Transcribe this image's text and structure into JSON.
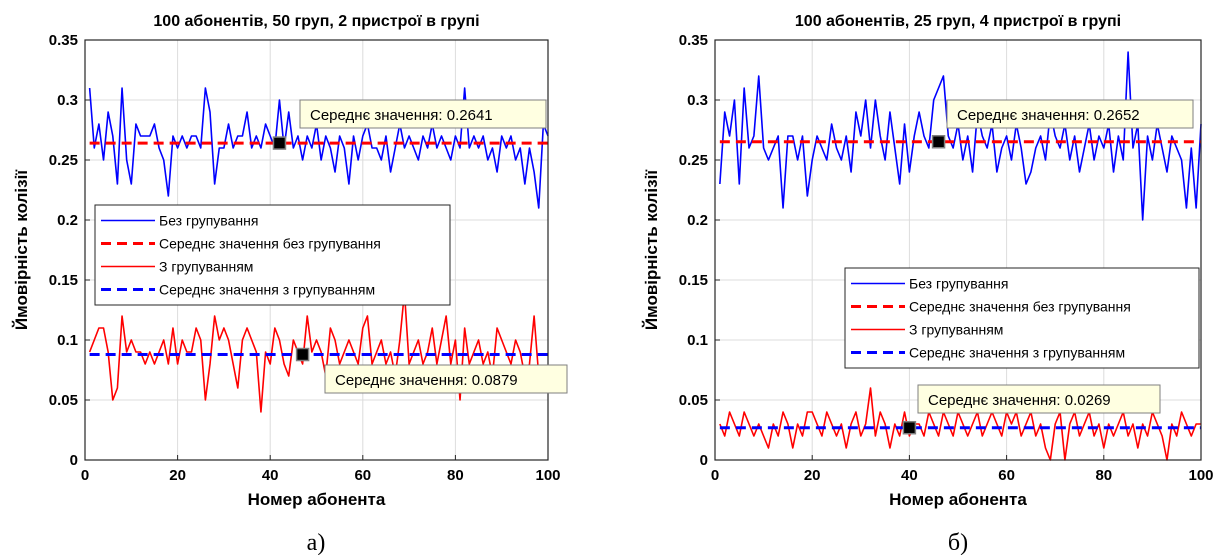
{
  "chart_data": [
    {
      "type": "line",
      "title": "100 абонентів, 50 груп, 2 пристрої в групі",
      "xlabel": "Номер абонента",
      "ylabel": "Ймовірність колізії",
      "caption": "а)",
      "xlim": [
        0,
        100
      ],
      "ylim": [
        0,
        0.35
      ],
      "xticks": [
        "0",
        "20",
        "40",
        "60",
        "80",
        "100"
      ],
      "yticks": [
        "0",
        "0.05",
        "0.1",
        "0.15",
        "0.2",
        "0.25",
        "0.3",
        "0.35"
      ],
      "grid": true,
      "legend_position": "center-left",
      "series": [
        {
          "name": "Без групування",
          "color": "#0000ff",
          "style": "solid",
          "x": [
            1,
            2,
            3,
            4,
            5,
            6,
            7,
            8,
            9,
            10,
            11,
            12,
            13,
            14,
            15,
            16,
            17,
            18,
            19,
            20,
            21,
            22,
            23,
            24,
            25,
            26,
            27,
            28,
            29,
            30,
            31,
            32,
            33,
            34,
            35,
            36,
            37,
            38,
            39,
            40,
            41,
            42,
            43,
            44,
            45,
            46,
            47,
            48,
            49,
            50,
            51,
            52,
            53,
            54,
            55,
            56,
            57,
            58,
            59,
            60,
            61,
            62,
            63,
            64,
            65,
            66,
            67,
            68,
            69,
            70,
            71,
            72,
            73,
            74,
            75,
            76,
            77,
            78,
            79,
            80,
            81,
            82,
            83,
            84,
            85,
            86,
            87,
            88,
            89,
            90,
            91,
            92,
            93,
            94,
            95,
            96,
            97,
            98,
            99,
            100
          ],
          "values": [
            0.31,
            0.26,
            0.28,
            0.25,
            0.29,
            0.27,
            0.23,
            0.31,
            0.25,
            0.23,
            0.28,
            0.27,
            0.27,
            0.27,
            0.28,
            0.26,
            0.25,
            0.22,
            0.27,
            0.26,
            0.27,
            0.26,
            0.27,
            0.27,
            0.26,
            0.31,
            0.29,
            0.23,
            0.26,
            0.26,
            0.28,
            0.26,
            0.27,
            0.27,
            0.29,
            0.26,
            0.27,
            0.26,
            0.28,
            0.27,
            0.26,
            0.3,
            0.26,
            0.29,
            0.26,
            0.27,
            0.25,
            0.27,
            0.26,
            0.28,
            0.25,
            0.27,
            0.26,
            0.24,
            0.27,
            0.26,
            0.23,
            0.27,
            0.25,
            0.27,
            0.28,
            0.26,
            0.26,
            0.25,
            0.27,
            0.24,
            0.26,
            0.28,
            0.26,
            0.27,
            0.26,
            0.25,
            0.27,
            0.26,
            0.28,
            0.26,
            0.27,
            0.26,
            0.25,
            0.27,
            0.26,
            0.31,
            0.26,
            0.27,
            0.26,
            0.27,
            0.25,
            0.26,
            0.24,
            0.27,
            0.26,
            0.27,
            0.25,
            0.26,
            0.23,
            0.26,
            0.24,
            0.21,
            0.28,
            0.27
          ]
        },
        {
          "name": "Середнє значення без групування",
          "color": "#ff0000",
          "style": "dashed",
          "x": [
            1,
            100
          ],
          "values": [
            0.2641,
            0.2641
          ]
        },
        {
          "name": "З групуванням",
          "color": "#ff0000",
          "style": "solid",
          "x": [
            1,
            2,
            3,
            4,
            5,
            6,
            7,
            8,
            9,
            10,
            11,
            12,
            13,
            14,
            15,
            16,
            17,
            18,
            19,
            20,
            21,
            22,
            23,
            24,
            25,
            26,
            27,
            28,
            29,
            30,
            31,
            32,
            33,
            34,
            35,
            36,
            37,
            38,
            39,
            40,
            41,
            42,
            43,
            44,
            45,
            46,
            47,
            48,
            49,
            50,
            51,
            52,
            53,
            54,
            55,
            56,
            57,
            58,
            59,
            60,
            61,
            62,
            63,
            64,
            65,
            66,
            67,
            68,
            69,
            70,
            71,
            72,
            73,
            74,
            75,
            76,
            77,
            78,
            79,
            80,
            81,
            82,
            83,
            84,
            85,
            86,
            87,
            88,
            89,
            90,
            91,
            92,
            93,
            94,
            95,
            96,
            97,
            98,
            99,
            100
          ],
          "values": [
            0.09,
            0.1,
            0.11,
            0.11,
            0.09,
            0.05,
            0.06,
            0.12,
            0.09,
            0.1,
            0.09,
            0.09,
            0.08,
            0.09,
            0.08,
            0.09,
            0.1,
            0.08,
            0.11,
            0.08,
            0.1,
            0.09,
            0.09,
            0.11,
            0.1,
            0.05,
            0.08,
            0.12,
            0.1,
            0.11,
            0.1,
            0.08,
            0.06,
            0.1,
            0.11,
            0.1,
            0.09,
            0.04,
            0.09,
            0.08,
            0.11,
            0.1,
            0.08,
            0.07,
            0.1,
            0.09,
            0.08,
            0.12,
            0.09,
            0.1,
            0.09,
            0.07,
            0.11,
            0.1,
            0.08,
            0.09,
            0.1,
            0.09,
            0.08,
            0.11,
            0.12,
            0.08,
            0.09,
            0.1,
            0.08,
            0.09,
            0.07,
            0.1,
            0.14,
            0.08,
            0.09,
            0.1,
            0.08,
            0.09,
            0.11,
            0.08,
            0.1,
            0.12,
            0.08,
            0.1,
            0.05,
            0.11,
            0.08,
            0.09,
            0.1,
            0.08,
            0.09,
            0.07,
            0.11,
            0.1,
            0.09,
            0.08,
            0.1,
            0.09,
            0.07,
            0.08,
            0.12,
            0.07,
            0.07,
            0.07
          ]
        },
        {
          "name": "Середнє значення з групуванням",
          "color": "#0000ff",
          "style": "dashed",
          "x": [
            1,
            100
          ],
          "values": [
            0.0879,
            0.0879
          ]
        }
      ],
      "annotations": [
        {
          "text": "Середнє значення: 0.2641",
          "x": 42,
          "y": 0.2641
        },
        {
          "text": "Середнє значення: 0.0879",
          "x": 47,
          "y": 0.0879
        }
      ]
    },
    {
      "type": "line",
      "title": "100 абонентів, 25 груп, 4 пристрої в групі",
      "xlabel": "Номер абонента",
      "ylabel": "Ймовірність колізії",
      "caption": "б)",
      "xlim": [
        0,
        100
      ],
      "ylim": [
        0,
        0.35
      ],
      "xticks": [
        "0",
        "20",
        "40",
        "60",
        "80",
        "100"
      ],
      "yticks": [
        "0",
        "0.05",
        "0.1",
        "0.15",
        "0.2",
        "0.25",
        "0.3",
        "0.35"
      ],
      "grid": true,
      "legend_position": "center-right",
      "series": [
        {
          "name": "Без групування",
          "color": "#0000ff",
          "style": "solid",
          "x": [
            1,
            2,
            3,
            4,
            5,
            6,
            7,
            8,
            9,
            10,
            11,
            12,
            13,
            14,
            15,
            16,
            17,
            18,
            19,
            20,
            21,
            22,
            23,
            24,
            25,
            26,
            27,
            28,
            29,
            30,
            31,
            32,
            33,
            34,
            35,
            36,
            37,
            38,
            39,
            40,
            41,
            42,
            43,
            44,
            45,
            46,
            47,
            48,
            49,
            50,
            51,
            52,
            53,
            54,
            55,
            56,
            57,
            58,
            59,
            60,
            61,
            62,
            63,
            64,
            65,
            66,
            67,
            68,
            69,
            70,
            71,
            72,
            73,
            74,
            75,
            76,
            77,
            78,
            79,
            80,
            81,
            82,
            83,
            84,
            85,
            86,
            87,
            88,
            89,
            90,
            91,
            92,
            93,
            94,
            95,
            96,
            97,
            98,
            99,
            100
          ],
          "values": [
            0.23,
            0.29,
            0.27,
            0.3,
            0.23,
            0.31,
            0.26,
            0.27,
            0.32,
            0.26,
            0.25,
            0.26,
            0.27,
            0.21,
            0.27,
            0.27,
            0.25,
            0.27,
            0.22,
            0.25,
            0.27,
            0.26,
            0.25,
            0.28,
            0.26,
            0.25,
            0.27,
            0.24,
            0.29,
            0.27,
            0.3,
            0.26,
            0.3,
            0.27,
            0.25,
            0.29,
            0.26,
            0.23,
            0.28,
            0.24,
            0.27,
            0.29,
            0.27,
            0.26,
            0.3,
            0.31,
            0.32,
            0.27,
            0.26,
            0.28,
            0.25,
            0.27,
            0.24,
            0.29,
            0.27,
            0.26,
            0.28,
            0.24,
            0.26,
            0.27,
            0.25,
            0.28,
            0.26,
            0.23,
            0.24,
            0.26,
            0.27,
            0.25,
            0.29,
            0.27,
            0.26,
            0.28,
            0.25,
            0.27,
            0.24,
            0.26,
            0.28,
            0.25,
            0.27,
            0.26,
            0.28,
            0.24,
            0.27,
            0.25,
            0.34,
            0.26,
            0.28,
            0.2,
            0.27,
            0.25,
            0.28,
            0.26,
            0.24,
            0.27,
            0.26,
            0.25,
            0.21,
            0.26,
            0.21,
            0.28
          ]
        },
        {
          "name": "Середнє значення без групування",
          "color": "#ff0000",
          "style": "dashed",
          "x": [
            1,
            100
          ],
          "values": [
            0.2652,
            0.2652
          ]
        },
        {
          "name": "З групуванням",
          "color": "#ff0000",
          "style": "solid",
          "x": [
            1,
            2,
            3,
            4,
            5,
            6,
            7,
            8,
            9,
            10,
            11,
            12,
            13,
            14,
            15,
            16,
            17,
            18,
            19,
            20,
            21,
            22,
            23,
            24,
            25,
            26,
            27,
            28,
            29,
            30,
            31,
            32,
            33,
            34,
            35,
            36,
            37,
            38,
            39,
            40,
            41,
            42,
            43,
            44,
            45,
            46,
            47,
            48,
            49,
            50,
            51,
            52,
            53,
            54,
            55,
            56,
            57,
            58,
            59,
            60,
            61,
            62,
            63,
            64,
            65,
            66,
            67,
            68,
            69,
            70,
            71,
            72,
            73,
            74,
            75,
            76,
            77,
            78,
            79,
            80,
            81,
            82,
            83,
            84,
            85,
            86,
            87,
            88,
            89,
            90,
            91,
            92,
            93,
            94,
            95,
            96,
            97,
            98,
            99,
            100
          ],
          "values": [
            0.03,
            0.02,
            0.04,
            0.03,
            0.02,
            0.04,
            0.03,
            0.02,
            0.03,
            0.02,
            0.01,
            0.03,
            0.02,
            0.04,
            0.03,
            0.01,
            0.03,
            0.02,
            0.04,
            0.04,
            0.03,
            0.02,
            0.04,
            0.03,
            0.02,
            0.03,
            0.01,
            0.03,
            0.04,
            0.02,
            0.03,
            0.06,
            0.02,
            0.04,
            0.03,
            0.01,
            0.03,
            0.02,
            0.04,
            0.02,
            0.03,
            0.03,
            0.02,
            0.04,
            0.03,
            0.02,
            0.04,
            0.03,
            0.02,
            0.04,
            0.03,
            0.02,
            0.03,
            0.04,
            0.02,
            0.03,
            0.04,
            0.03,
            0.02,
            0.04,
            0.03,
            0.04,
            0.02,
            0.03,
            0.04,
            0.02,
            0.03,
            0.01,
            0.0,
            0.03,
            0.04,
            0.0,
            0.03,
            0.04,
            0.02,
            0.03,
            0.04,
            0.02,
            0.03,
            0.01,
            0.03,
            0.02,
            0.03,
            0.04,
            0.02,
            0.03,
            0.01,
            0.03,
            0.02,
            0.04,
            0.03,
            0.02,
            0.0,
            0.03,
            0.02,
            0.04,
            0.03,
            0.02,
            0.03,
            0.03
          ]
        },
        {
          "name": "Середнє значення з групуванням",
          "color": "#0000ff",
          "style": "dashed",
          "x": [
            1,
            100
          ],
          "values": [
            0.0269,
            0.0269
          ]
        }
      ],
      "annotations": [
        {
          "text": "Середнє значення: 0.2652",
          "x": 46,
          "y": 0.2652
        },
        {
          "text": "Середнє значення: 0.0269",
          "x": 40,
          "y": 0.0269
        }
      ]
    }
  ]
}
